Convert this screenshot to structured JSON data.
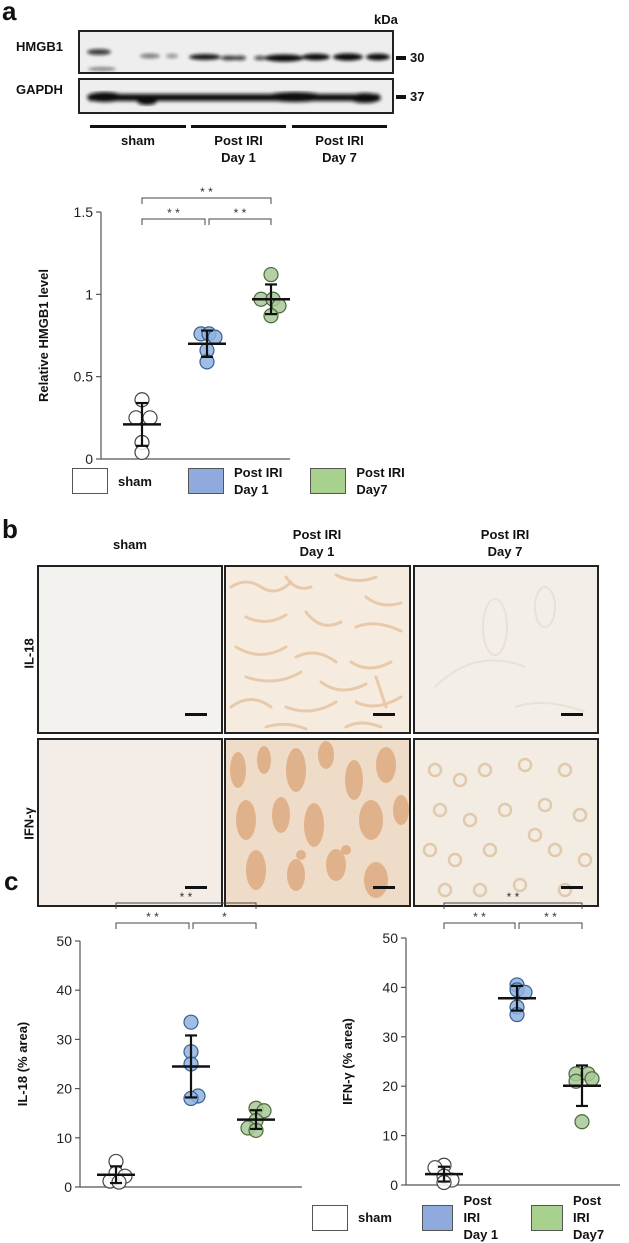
{
  "panel_a": {
    "letter": "a",
    "blot": {
      "kda_label": "kDa",
      "rows": [
        {
          "protein": "HMGB1",
          "marker": "30"
        },
        {
          "protein": "GAPDH",
          "marker": "37"
        }
      ],
      "groups": [
        {
          "line1": "sham",
          "line2": ""
        },
        {
          "line1": "Post IRI",
          "line2": "Day 1"
        },
        {
          "line1": "Post IRI",
          "line2": "Day 7"
        }
      ]
    }
  },
  "panel_b": {
    "letter": "b",
    "columns": [
      {
        "line1": "sham",
        "line2": ""
      },
      {
        "line1": "Post IRI",
        "line2": "Day 1"
      },
      {
        "line1": "Post IRI",
        "line2": "Day 7"
      }
    ],
    "rows": [
      "IL-18",
      "IFN-γ"
    ]
  },
  "panel_c": {
    "letter": "c"
  },
  "legend": {
    "items": [
      {
        "line1": "sham",
        "line2": "",
        "color": "#ffffff"
      },
      {
        "line1": "Post IRI",
        "line2": "Day 1",
        "color": "#8faadc"
      },
      {
        "line1": "Post IRI",
        "line2": "Day7",
        "color": "#a9d18e"
      }
    ]
  },
  "colors": {
    "sham": "#ffffff",
    "day1": "#8fb3e0",
    "day7": "#a8c896",
    "day1_edge": "#3a5f8f",
    "day7_edge": "#4a6a3a"
  },
  "chart_data": [
    {
      "type": "scatter",
      "title": "",
      "xlabel": "",
      "ylabel": "Relative HMGB1 level",
      "ylim": [
        0,
        1.5
      ],
      "yticks": [
        "0",
        "0.5",
        "1",
        "1.5"
      ],
      "categories": [
        "sham",
        "Post IRI Day 1",
        "Post IRI Day7"
      ],
      "series": [
        {
          "name": "sham",
          "points": [
            0.36,
            0.25,
            0.25,
            0.1,
            0.04
          ],
          "mean": 0.21,
          "sd": 0.13
        },
        {
          "name": "Post IRI Day 1",
          "points": [
            0.76,
            0.76,
            0.74,
            0.66,
            0.59
          ],
          "mean": 0.7,
          "sd": 0.08
        },
        {
          "name": "Post IRI Day7",
          "points": [
            1.12,
            0.97,
            0.97,
            0.93,
            0.87
          ],
          "mean": 0.97,
          "sd": 0.09
        }
      ],
      "significance": [
        {
          "from": 0,
          "to": 2,
          "label": "**"
        },
        {
          "from": 0,
          "to": 1,
          "label": "**"
        },
        {
          "from": 1,
          "to": 2,
          "label": "**"
        }
      ],
      "grid": false
    },
    {
      "type": "scatter",
      "title": "",
      "xlabel": "",
      "ylabel": "IL-18 (% area)",
      "ylim": [
        0,
        50
      ],
      "yticks": [
        "0",
        "10",
        "20",
        "30",
        "40",
        "50"
      ],
      "categories": [
        "sham",
        "Post IRI Day 1",
        "Post IRI Day7"
      ],
      "series": [
        {
          "name": "sham",
          "points": [
            5.2,
            2.8,
            2.2,
            1.2,
            1.0
          ],
          "mean": 2.5,
          "sd": 1.7
        },
        {
          "name": "Post IRI Day 1",
          "points": [
            33.5,
            27.5,
            25.0,
            18.5,
            18.0
          ],
          "mean": 24.5,
          "sd": 6.3
        },
        {
          "name": "Post IRI Day7",
          "points": [
            16.0,
            15.5,
            13.5,
            12.0,
            11.5
          ],
          "mean": 13.7,
          "sd": 1.9
        }
      ],
      "significance": [
        {
          "from": 0,
          "to": 2,
          "label": "**"
        },
        {
          "from": 0,
          "to": 1,
          "label": "**"
        },
        {
          "from": 1,
          "to": 2,
          "label": "*"
        }
      ],
      "grid": false
    },
    {
      "type": "scatter",
      "title": "",
      "xlabel": "",
      "ylabel": "IFN-γ (% area)",
      "ylim": [
        0,
        50
      ],
      "yticks": [
        "0",
        "10",
        "20",
        "30",
        "40",
        "50"
      ],
      "categories": [
        "sham",
        "Post IRI Day 1",
        "Post IRI Day7"
      ],
      "series": [
        {
          "name": "sham",
          "points": [
            4.0,
            3.5,
            1.8,
            1.0,
            0.5
          ],
          "mean": 2.2,
          "sd": 1.5
        },
        {
          "name": "Post IRI Day 1",
          "points": [
            40.5,
            39.5,
            39.0,
            36.0,
            34.5
          ],
          "mean": 37.8,
          "sd": 2.5
        },
        {
          "name": "Post IRI Day7",
          "points": [
            22.5,
            22.5,
            21.5,
            21.0,
            12.8
          ],
          "mean": 20.1,
          "sd": 4.1
        }
      ],
      "significance": [
        {
          "from": 0,
          "to": 2,
          "label": "**"
        },
        {
          "from": 0,
          "to": 1,
          "label": "**"
        },
        {
          "from": 1,
          "to": 2,
          "label": "**"
        }
      ],
      "grid": false
    }
  ]
}
